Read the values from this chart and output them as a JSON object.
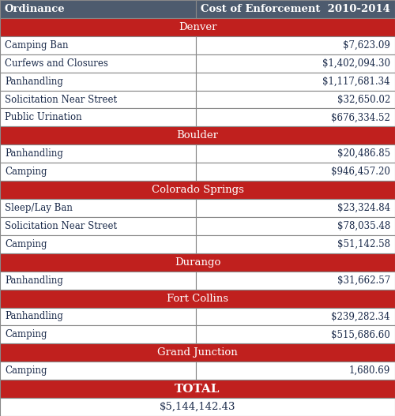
{
  "header": [
    "Ordinance",
    "Cost of Enforcement  2010-2014"
  ],
  "header_bg": "#4d5b6e",
  "header_text_color": "#ffffff",
  "city_bg": "#c0201e",
  "city_text_color": "#ffffff",
  "total_bg": "#c0201e",
  "total_text_color": "#ffffff",
  "row_bg": "#ffffff",
  "row_text_color": "#1a2a4a",
  "border_color": "#888888",
  "cities": [
    {
      "name": "Denver",
      "rows": [
        [
          "Camping Ban",
          "$7,623.09"
        ],
        [
          "Curfews and Closures",
          "$1,402,094.30"
        ],
        [
          "Panhandling",
          "$1,117,681.34"
        ],
        [
          "Solicitation Near Street",
          "$32,650.02"
        ],
        [
          "Public Urination",
          "$676,334.52"
        ]
      ]
    },
    {
      "name": "Boulder",
      "rows": [
        [
          "Panhandling",
          "$20,486.85"
        ],
        [
          "Camping",
          "$946,457.20"
        ]
      ]
    },
    {
      "name": "Colorado Springs",
      "rows": [
        [
          "Sleep/Lay Ban",
          "$23,324.84"
        ],
        [
          "Solicitation Near Street",
          "$78,035.48"
        ],
        [
          "Camping",
          "$51,142.58"
        ]
      ]
    },
    {
      "name": "Durango",
      "rows": [
        [
          "Panhandling",
          "$31,662.57"
        ]
      ]
    },
    {
      "name": "Fort Collins",
      "rows": [
        [
          "Panhandling",
          "$239,282.34"
        ],
        [
          "Camping",
          "$515,686.60"
        ]
      ]
    },
    {
      "name": "Grand Junction",
      "rows": [
        [
          "Camping",
          "1,680.69"
        ]
      ]
    }
  ],
  "total_label": "TOTAL",
  "total_value": "$5,144,142.43",
  "col_split": 0.495,
  "header_fontsize": 9.5,
  "city_fontsize": 9.5,
  "data_fontsize": 8.5,
  "total_label_fontsize": 11,
  "total_value_fontsize": 9.5
}
